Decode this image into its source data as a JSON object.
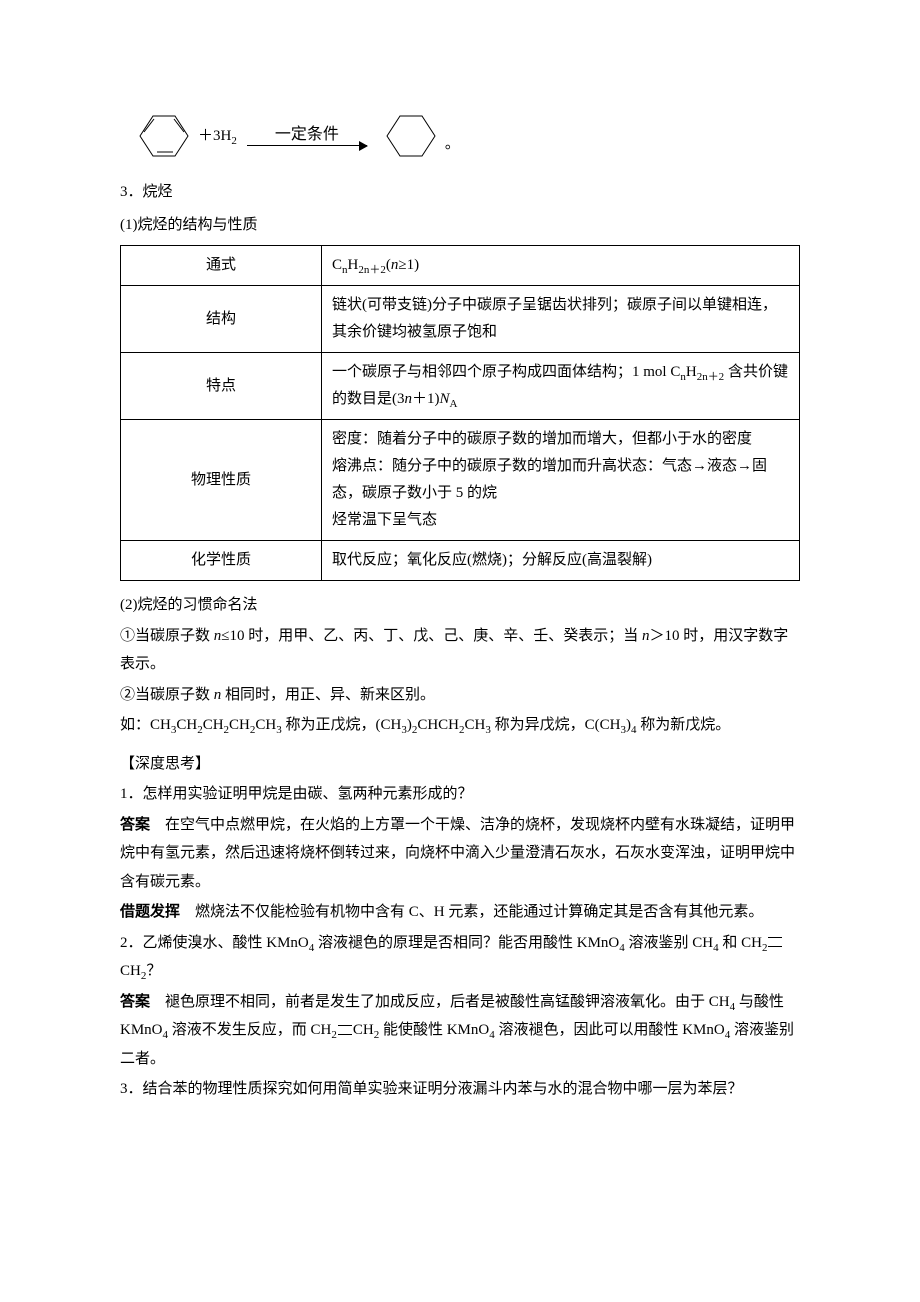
{
  "equation": {
    "plus": "＋3H",
    "h2sub": "2",
    "arrow_label": "一定条件",
    "period": "。",
    "hex_stroke": "#000000",
    "hex_stroke_width": 1
  },
  "section3": {
    "title": "3．烷烃",
    "sub1": "(1)烷烃的结构与性质"
  },
  "table": {
    "border_color": "#000000",
    "rows": [
      {
        "label": "通式",
        "content_html": "C<sub>n</sub>H<sub>2n＋2</sub>(<i>n</i>≥1)",
        "center": true
      },
      {
        "label": "结构",
        "content_html": "链状(可带支链)分子中碳原子呈锯齿状排列；碳原子间以单键相连，其余价键均被氢原子饱和"
      },
      {
        "label": "特点",
        "content_html": "一个碳原子与相邻四个原子构成四面体结构；1 mol C<sub>n</sub>H<sub>2n＋2</sub> 含共价键的数目是(3<i>n</i>＋1)<i>N</i><sub>A</sub>"
      },
      {
        "label": "物理性质",
        "content_html": "密度：随着分子中的碳原子数的增加而增大，但都小于水的密度<br>熔沸点：随分子中的碳原子数的增加而升高状态：气态→液态→固态，碳原子数小于 5 的烷<br>烃常温下呈气态"
      },
      {
        "label": "化学性质",
        "content_html": "取代反应；氧化反应(燃烧)；分解反应(高温裂解)",
        "center": true
      }
    ]
  },
  "naming": {
    "head": "(2)烷烃的习惯命名法",
    "p1_html": "①当碳原子数 <i>n</i>≤10 时，用甲、乙、丙、丁、戊、己、庚、辛、壬、癸表示；当 <i>n</i>＞10 时，用汉字数字表示。",
    "p2_html": "②当碳原子数 <i>n</i> 相同时，用正、异、新来区别。",
    "p3_html": "如：CH<sub>3</sub>CH<sub>2</sub>CH<sub>2</sub>CH<sub>2</sub>CH<sub>3</sub> 称为正戊烷，(CH<sub>3</sub>)<sub>2</sub>CHCH<sub>2</sub>CH<sub>3</sub> 称为异戊烷，C(CH<sub>3</sub>)<sub>4</sub> 称为新戊烷。"
  },
  "deep": {
    "title": "【深度思考】"
  },
  "q1": {
    "q": "1．怎样用实验证明甲烷是由碳、氢两种元素形成的？",
    "ans_label": "答案",
    "ans": "　在空气中点燃甲烷，在火焰的上方罩一个干燥、洁净的烧杯，发现烧杯内壁有水珠凝结，证明甲烷中有氢元素，然后迅速将烧杯倒转过来，向烧杯中滴入少量澄清石灰水，石灰水变浑浊，证明甲烷中含有碳元素。",
    "ext_label": "借题发挥",
    "ext": "　燃烧法不仅能检验有机物中含有 C、H 元素，还能通过计算确定其是否含有其他元素。"
  },
  "q2": {
    "q_a": "2．乙烯使溴水、酸性 KMnO",
    "q_b": " 溶液褪色的原理是否相同？能否用酸性 KMnO",
    "q_c": " 溶液鉴别 CH",
    "q_d": "和 CH",
    "q_e": "CH",
    "q_f": "？",
    "sub4": "4",
    "sub2": "2",
    "ans_label": "答案",
    "ans_a": "　褪色原理不相同，前者是发生了加成反应，后者是被酸性高锰酸钾溶液氧化。由于 CH",
    "ans_b": "与酸性 KMnO",
    "ans_c": " 溶液不发生反应，而 CH",
    "ans_d": "CH",
    "ans_e": " 能使酸性 KMnO",
    "ans_f": " 溶液褪色，因此可以用酸性 KMnO",
    "ans_g": " 溶液鉴别二者。"
  },
  "q3": {
    "q": "3．结合苯的物理性质探究如何用简单实验来证明分液漏斗内苯与水的混合物中哪一层为苯层？"
  }
}
